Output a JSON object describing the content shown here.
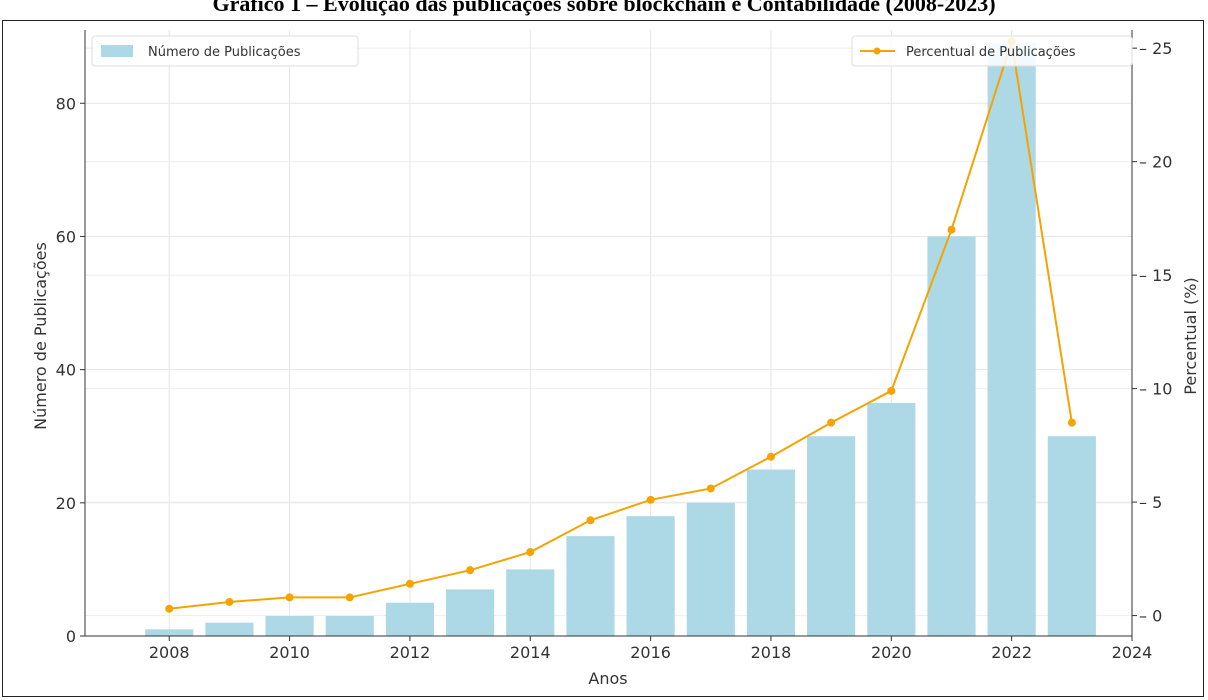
{
  "figure": {
    "title": "Gráfico 1 – Evolução das publicações sobre blockchain e Contabilidade (2008-2023)"
  },
  "chart_data": {
    "type": "bar",
    "title": "",
    "xlabel": "Anos",
    "ylabel": "Número de Publicações",
    "y2label": "Percentual (%)",
    "categories": [
      2008,
      2009,
      2010,
      2011,
      2012,
      2013,
      2014,
      2015,
      2016,
      2017,
      2018,
      2019,
      2020,
      2021,
      2022,
      2023
    ],
    "xlim": [
      2006.6,
      2024
    ],
    "xticks": [
      "2008",
      "2010",
      "2012",
      "2014",
      "2016",
      "2018",
      "2020",
      "2022",
      "2024"
    ],
    "ylim": [
      0,
      91
    ],
    "yticks": [
      "0",
      "20",
      "40",
      "60",
      "80"
    ],
    "y2lim": [
      -0.9,
      25.8
    ],
    "y2ticks": [
      "0",
      "5",
      "10",
      "15",
      "20",
      "25"
    ],
    "grid": true,
    "series": [
      {
        "name": "Número de Publicações",
        "type": "bar",
        "axis": "left",
        "color": "#add8e6",
        "values": [
          1,
          2,
          3,
          3,
          5,
          7,
          10,
          15,
          18,
          20,
          25,
          30,
          35,
          60,
          89,
          30
        ]
      },
      {
        "name": "Percentual de Publicações",
        "type": "line",
        "axis": "right",
        "color": "#f5a300",
        "marker": "circle",
        "values": [
          0.3,
          0.6,
          0.8,
          0.8,
          1.4,
          2.0,
          2.8,
          4.2,
          5.1,
          5.6,
          7.0,
          8.5,
          9.9,
          17.0,
          25.3,
          8.5
        ]
      }
    ],
    "legend": [
      {
        "label": "Número de Publicações",
        "position": "top-left"
      },
      {
        "label": "Percentual de Publicações",
        "position": "top-right"
      }
    ]
  }
}
